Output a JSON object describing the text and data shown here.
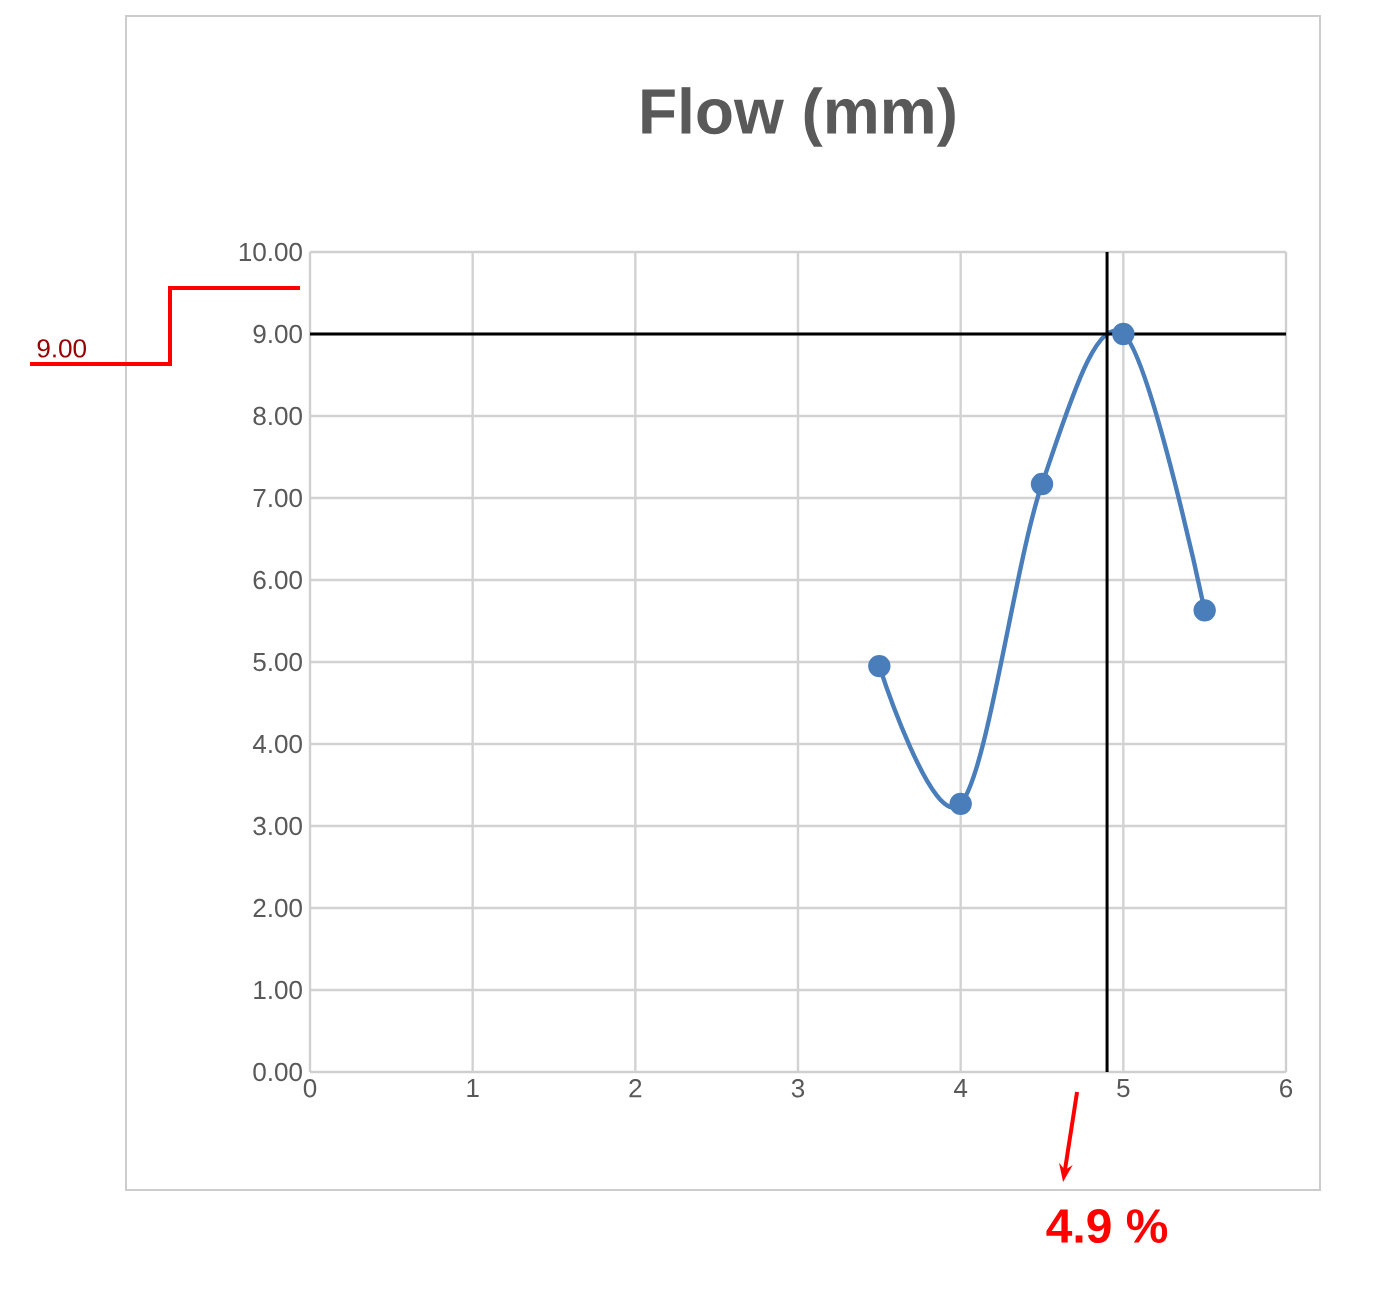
{
  "chart_data": {
    "type": "line",
    "title": "Flow (mm)",
    "x": [
      3.5,
      4,
      4.5,
      5,
      5.5
    ],
    "series": [
      {
        "color": "#4a7ebb",
        "values": [
          4.95,
          3.27,
          7.17,
          9.0,
          5.63
        ]
      }
    ],
    "xlim": [
      0,
      6
    ],
    "xticks": [
      0,
      1,
      2,
      3,
      4,
      5,
      6
    ],
    "ylim": [
      0,
      10
    ],
    "yticks": [
      {
        "value": 0,
        "label": "0.00"
      },
      {
        "value": 1,
        "label": "1.00"
      },
      {
        "value": 2,
        "label": "2.00"
      },
      {
        "value": 3,
        "label": "3.00"
      },
      {
        "value": 4,
        "label": "4.00"
      },
      {
        "value": 5,
        "label": "5.00"
      },
      {
        "value": 6,
        "label": "6.00"
      },
      {
        "value": 7,
        "label": "7.00"
      },
      {
        "value": 8,
        "label": "8.00"
      },
      {
        "value": 9,
        "label": "9.00"
      },
      {
        "value": 10,
        "label": "10.00"
      }
    ],
    "grid": true,
    "marker": "circle",
    "line_style": "solid",
    "ref_lines": [
      {
        "axis": "y",
        "value": 9,
        "color": "#000000"
      },
      {
        "axis": "x",
        "value": 4.9,
        "color": "#000000"
      }
    ],
    "annotations": [
      "9.00",
      "4.9 %"
    ]
  }
}
